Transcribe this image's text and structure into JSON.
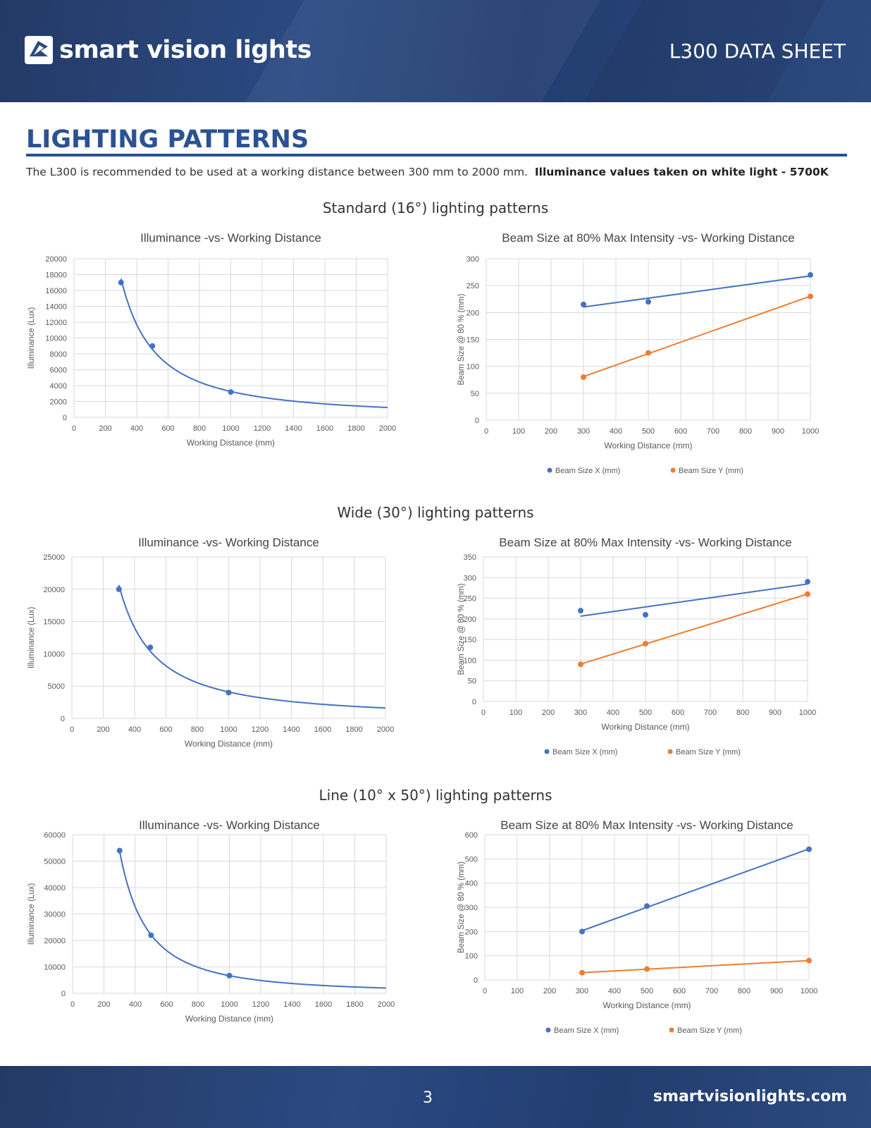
{
  "header": {
    "brand": "smart vision lights",
    "doc_title": "L300 DATA SHEET",
    "logo_icon": "svl-logo-icon"
  },
  "section": {
    "title": "LIGHTING PATTERNS",
    "intro": "The L300 is recommended to be used at a working distance between 300 mm to 2000 mm.",
    "intro_bold": "Illuminance values taken on white light - 5700K"
  },
  "groups": [
    {
      "title": "Standard (16°) lighting patterns"
    },
    {
      "title": "Wide (30°) lighting patterns"
    },
    {
      "title": "Line (10° x 50°) lighting patterns"
    }
  ],
  "footer": {
    "page": "3",
    "site": "smartvisionlights.com"
  },
  "colors": {
    "header_bg": "#243a66",
    "accent": "#2a5294",
    "series_x": "#4472c4",
    "series_y": "#ed7d31"
  },
  "chart_data": [
    {
      "type": "scatter",
      "title": "Illuminance -vs- Working Distance",
      "xlabel": "Working Distance (mm)",
      "ylabel": "Illuminance (Lux)",
      "xlim": [
        0,
        2000
      ],
      "ylim": [
        0,
        20000
      ],
      "xticks": [
        0,
        200,
        400,
        600,
        800,
        1000,
        1200,
        1400,
        1600,
        1800,
        2000
      ],
      "yticks": [
        0,
        2000,
        4000,
        6000,
        8000,
        10000,
        12000,
        14000,
        16000,
        18000,
        20000
      ],
      "grid": true,
      "trend": "power",
      "series": [
        {
          "x": [
            300,
            500,
            1000
          ],
          "y": [
            17000,
            9000,
            3200
          ]
        }
      ]
    },
    {
      "type": "scatter",
      "title": "Beam Size at 80% Max Intensity -vs- Working Distance",
      "xlabel": "Working Distance (mm)",
      "ylabel": "Beam Size @ 80 % (mm)",
      "xlim": [
        0,
        1000
      ],
      "ylim": [
        0,
        300
      ],
      "xticks": [
        0,
        100,
        200,
        300,
        400,
        500,
        600,
        700,
        800,
        900,
        1000
      ],
      "yticks": [
        0,
        50,
        100,
        150,
        200,
        250,
        300
      ],
      "grid": true,
      "trend": "linear",
      "legend": "bottom",
      "series": [
        {
          "name": "Beam Size X (mm)",
          "x": [
            300,
            500,
            1000
          ],
          "y": [
            215,
            220,
            270
          ]
        },
        {
          "name": "Beam Size Y (mm)",
          "x": [
            300,
            500,
            1000
          ],
          "y": [
            80,
            125,
            230
          ]
        }
      ]
    },
    {
      "type": "scatter",
      "title": "Illuminance -vs- Working Distance",
      "xlabel": "Working Distance (mm)",
      "ylabel": "Illuminance (Lux)",
      "xlim": [
        0,
        2000
      ],
      "ylim": [
        0,
        25000
      ],
      "xticks": [
        0,
        200,
        400,
        600,
        800,
        1000,
        1200,
        1400,
        1600,
        1800,
        2000
      ],
      "yticks": [
        0,
        5000,
        10000,
        15000,
        20000,
        25000
      ],
      "grid": true,
      "trend": "power",
      "series": [
        {
          "x": [
            300,
            500,
            1000
          ],
          "y": [
            20000,
            11000,
            4000
          ]
        }
      ]
    },
    {
      "type": "scatter",
      "title": "Beam Size at 80% Max Intensity -vs- Working Distance",
      "xlabel": "Working Distance (mm)",
      "ylabel": "Beam Size @ 80 % (mm)",
      "xlim": [
        0,
        1000
      ],
      "ylim": [
        0,
        350
      ],
      "xticks": [
        0,
        100,
        200,
        300,
        400,
        500,
        600,
        700,
        800,
        900,
        1000
      ],
      "yticks": [
        0,
        50,
        100,
        150,
        200,
        250,
        300,
        350
      ],
      "grid": true,
      "trend": "linear",
      "legend": "bottom",
      "series": [
        {
          "name": "Beam Size X (mm)",
          "x": [
            300,
            500,
            1000
          ],
          "y": [
            220,
            210,
            290
          ]
        },
        {
          "name": "Beam Size Y (mm)",
          "x": [
            300,
            500,
            1000
          ],
          "y": [
            90,
            140,
            260
          ]
        }
      ]
    },
    {
      "type": "scatter",
      "title": "Illuminance -vs- Working Distance",
      "xlabel": "Working Distance (mm)",
      "ylabel": "Illuminance (Lux)",
      "xlim": [
        0,
        2000
      ],
      "ylim": [
        0,
        60000
      ],
      "xticks": [
        0,
        200,
        400,
        600,
        800,
        1000,
        1200,
        1400,
        1600,
        1800,
        2000
      ],
      "yticks": [
        0,
        10000,
        20000,
        30000,
        40000,
        50000,
        60000
      ],
      "grid": true,
      "trend": "power",
      "series": [
        {
          "x": [
            300,
            500,
            1000
          ],
          "y": [
            54000,
            22000,
            6700
          ]
        }
      ]
    },
    {
      "type": "scatter",
      "title": "Beam Size at 80% Max Intensity -vs- Working Distance",
      "xlabel": "Working Distance (mm)",
      "ylabel": "Beam Size @ 80 % (mm)",
      "xlim": [
        0,
        1000
      ],
      "ylim": [
        0,
        600
      ],
      "xticks": [
        0,
        100,
        200,
        300,
        400,
        500,
        600,
        700,
        800,
        900,
        1000
      ],
      "yticks": [
        0,
        100,
        200,
        300,
        400,
        500,
        600
      ],
      "grid": true,
      "trend": "linear",
      "legend": "bottom",
      "series": [
        {
          "name": "Beam Size X (mm)",
          "x": [
            300,
            500,
            1000
          ],
          "y": [
            200,
            305,
            540
          ]
        },
        {
          "name": "Beam Size Y (mm)",
          "x": [
            300,
            500,
            1000
          ],
          "y": [
            30,
            45,
            80
          ]
        }
      ]
    }
  ]
}
